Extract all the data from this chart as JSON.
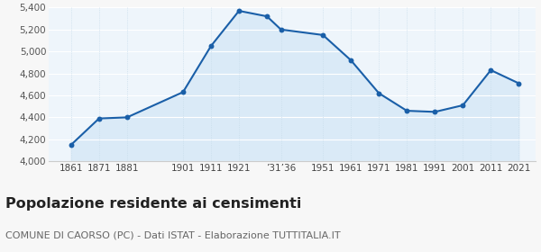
{
  "years": [
    1861,
    1871,
    1881,
    1901,
    1911,
    1921,
    1931,
    1936,
    1951,
    1961,
    1971,
    1981,
    1991,
    2001,
    2011,
    2021
  ],
  "population": [
    4150,
    4390,
    4400,
    4630,
    5050,
    5370,
    5320,
    5200,
    5150,
    4920,
    4620,
    4460,
    4450,
    4510,
    4830,
    4710
  ],
  "line_color": "#1a5fa8",
  "fill_color": "#daeaf7",
  "marker_color": "#1a5fa8",
  "bg_color": "#f7f7f7",
  "plot_bg_color": "#eef5fb",
  "grid_color_h": "#ffffff",
  "grid_color_v": "#c8dcea",
  "ylim": [
    4000,
    5400
  ],
  "yticks": [
    4000,
    4200,
    4400,
    4600,
    4800,
    5000,
    5200,
    5400
  ],
  "xlim_min": 1853,
  "xlim_max": 2027,
  "title": "Popolazione residente ai censimenti",
  "subtitle": "COMUNE DI CAORSO (PC) - Dati ISTAT - Elaborazione TUTTITALIA.IT",
  "title_fontsize": 11.5,
  "subtitle_fontsize": 8,
  "tick_label_positions": [
    1861,
    1871,
    1881,
    1901,
    1911,
    1921,
    1936,
    1951,
    1961,
    1971,
    1981,
    1991,
    2001,
    2011,
    2021
  ],
  "tick_labels": [
    "1861",
    "1871",
    "1881",
    "1901",
    "1911",
    "1921",
    "’31’36",
    "1951",
    "1961",
    "1971",
    "1981",
    "1991",
    "2001",
    "2011",
    "2021"
  ],
  "ytick_labels": [
    "4,000",
    "4,200",
    "4,400",
    "4,600",
    "4,800",
    "5,000",
    "5,200",
    "5,400"
  ]
}
